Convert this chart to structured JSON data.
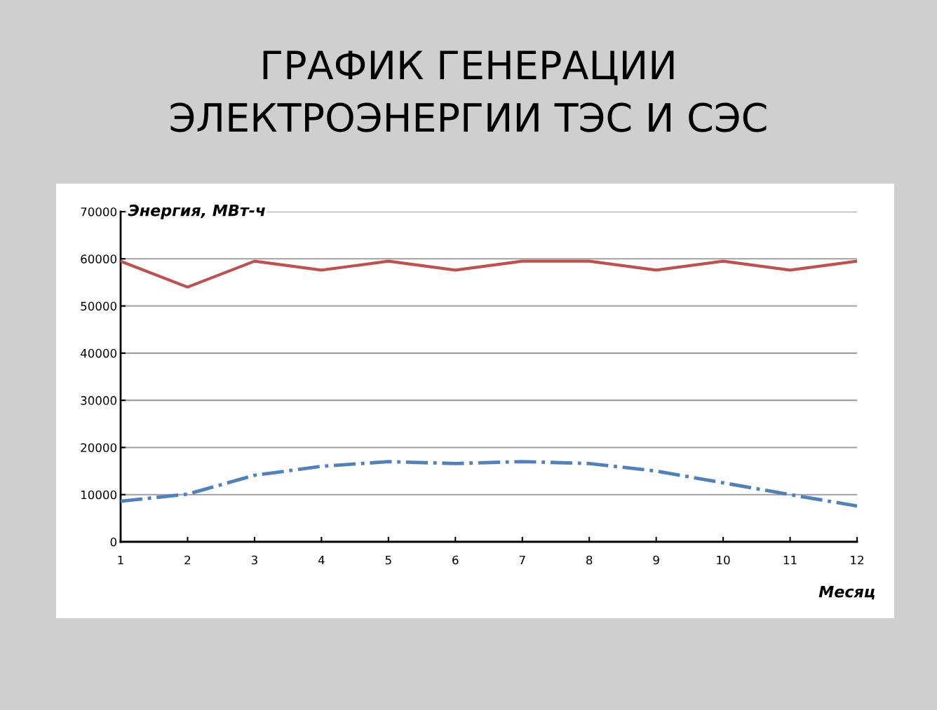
{
  "chart_data": {
    "type": "line",
    "title": "ГРАФИК ГЕНЕРАЦИИ\nЭЛЕКТРОЭНЕРГИИ ТЭС И СЭС",
    "xlabel": "Месяц",
    "ylabel": "Энергия, МВт-ч",
    "x": [
      1,
      2,
      3,
      4,
      5,
      6,
      7,
      8,
      9,
      10,
      11,
      12
    ],
    "series": [
      {
        "color": "#c0504d",
        "line_style": "solid",
        "values": [
          59500,
          54000,
          59500,
          57600,
          59500,
          57600,
          59500,
          59500,
          57600,
          59500,
          57600,
          59500
        ]
      },
      {
        "color": "#4f81bd",
        "line_style": "dashed",
        "values": [
          8600,
          10100,
          14100,
          16000,
          17000,
          16600,
          17000,
          16600,
          15000,
          12500,
          10000,
          7600
        ]
      }
    ],
    "xlim": [
      1,
      12
    ],
    "xticks": [
      1,
      2,
      3,
      4,
      5,
      6,
      7,
      8,
      9,
      10,
      11,
      12
    ],
    "ylim": [
      0,
      70000
    ],
    "yticks": [
      0,
      10000,
      20000,
      30000,
      40000,
      50000,
      60000,
      70000
    ],
    "grid": "y",
    "legend": false,
    "marker": "none"
  }
}
